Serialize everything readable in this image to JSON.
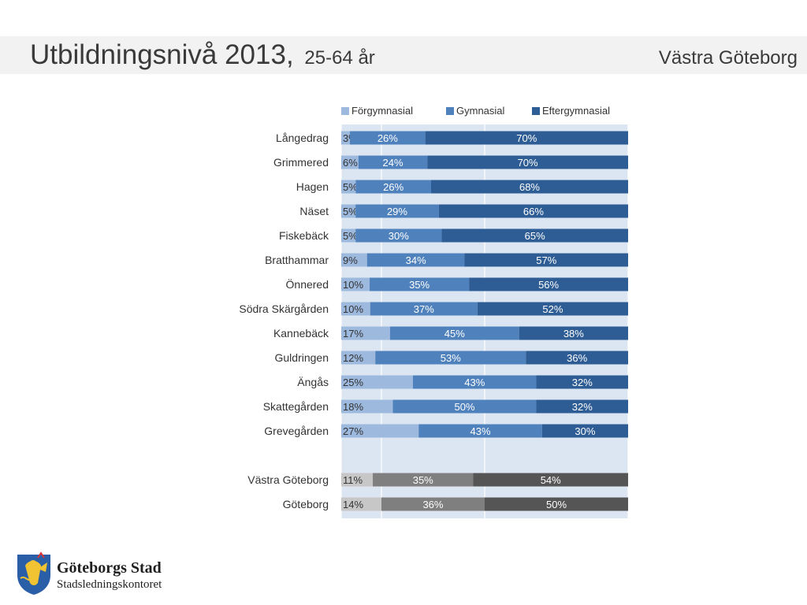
{
  "header": {
    "title": "Utbildningsnivå 2013,",
    "subtitle": "25-64 år",
    "region": "Västra Göteborg"
  },
  "logo": {
    "name": "Göteborgs Stad",
    "department": "Stadsledningskontoret"
  },
  "colors": {
    "forgymnasial": "#9db9de",
    "gymnasial": "#4f81bd",
    "eftergymnasial": "#2e5d95",
    "total_forgymnasial": "#c7c7c7",
    "total_gymnasial": "#7f7f7f",
    "total_eftergymnasial": "#555555",
    "plot_bg": "#dce6f2"
  },
  "chart_data": {
    "type": "bar",
    "orientation": "horizontal",
    "stacked": "100%",
    "legend_position": "top",
    "series": [
      {
        "name": "Förgymnasial"
      },
      {
        "name": "Gymnasial"
      },
      {
        "name": "Eftergymnasial"
      }
    ],
    "groups": [
      {
        "style": "areas",
        "categories": [
          "Långedrag",
          "Grimmered",
          "Hagen",
          "Näset",
          "Fiskebäck",
          "Bratthammar",
          "Önnered",
          "Södra Skärgården",
          "Kannebäck",
          "Guldringen",
          "Ängås",
          "Skattegården",
          "Grevegården"
        ],
        "values": [
          [
            3,
            26,
            70
          ],
          [
            6,
            24,
            70
          ],
          [
            5,
            26,
            68
          ],
          [
            5,
            29,
            66
          ],
          [
            5,
            30,
            65
          ],
          [
            9,
            34,
            57
          ],
          [
            10,
            35,
            56
          ],
          [
            10,
            37,
            52
          ],
          [
            17,
            45,
            38
          ],
          [
            12,
            53,
            36
          ],
          [
            25,
            43,
            32
          ],
          [
            18,
            50,
            32
          ],
          [
            27,
            43,
            30
          ]
        ]
      },
      {
        "style": "totals",
        "categories": [
          "Västra Göteborg",
          "Göteborg"
        ],
        "values": [
          [
            11,
            35,
            54
          ],
          [
            14,
            36,
            50
          ]
        ]
      }
    ],
    "value_suffix": "%"
  }
}
